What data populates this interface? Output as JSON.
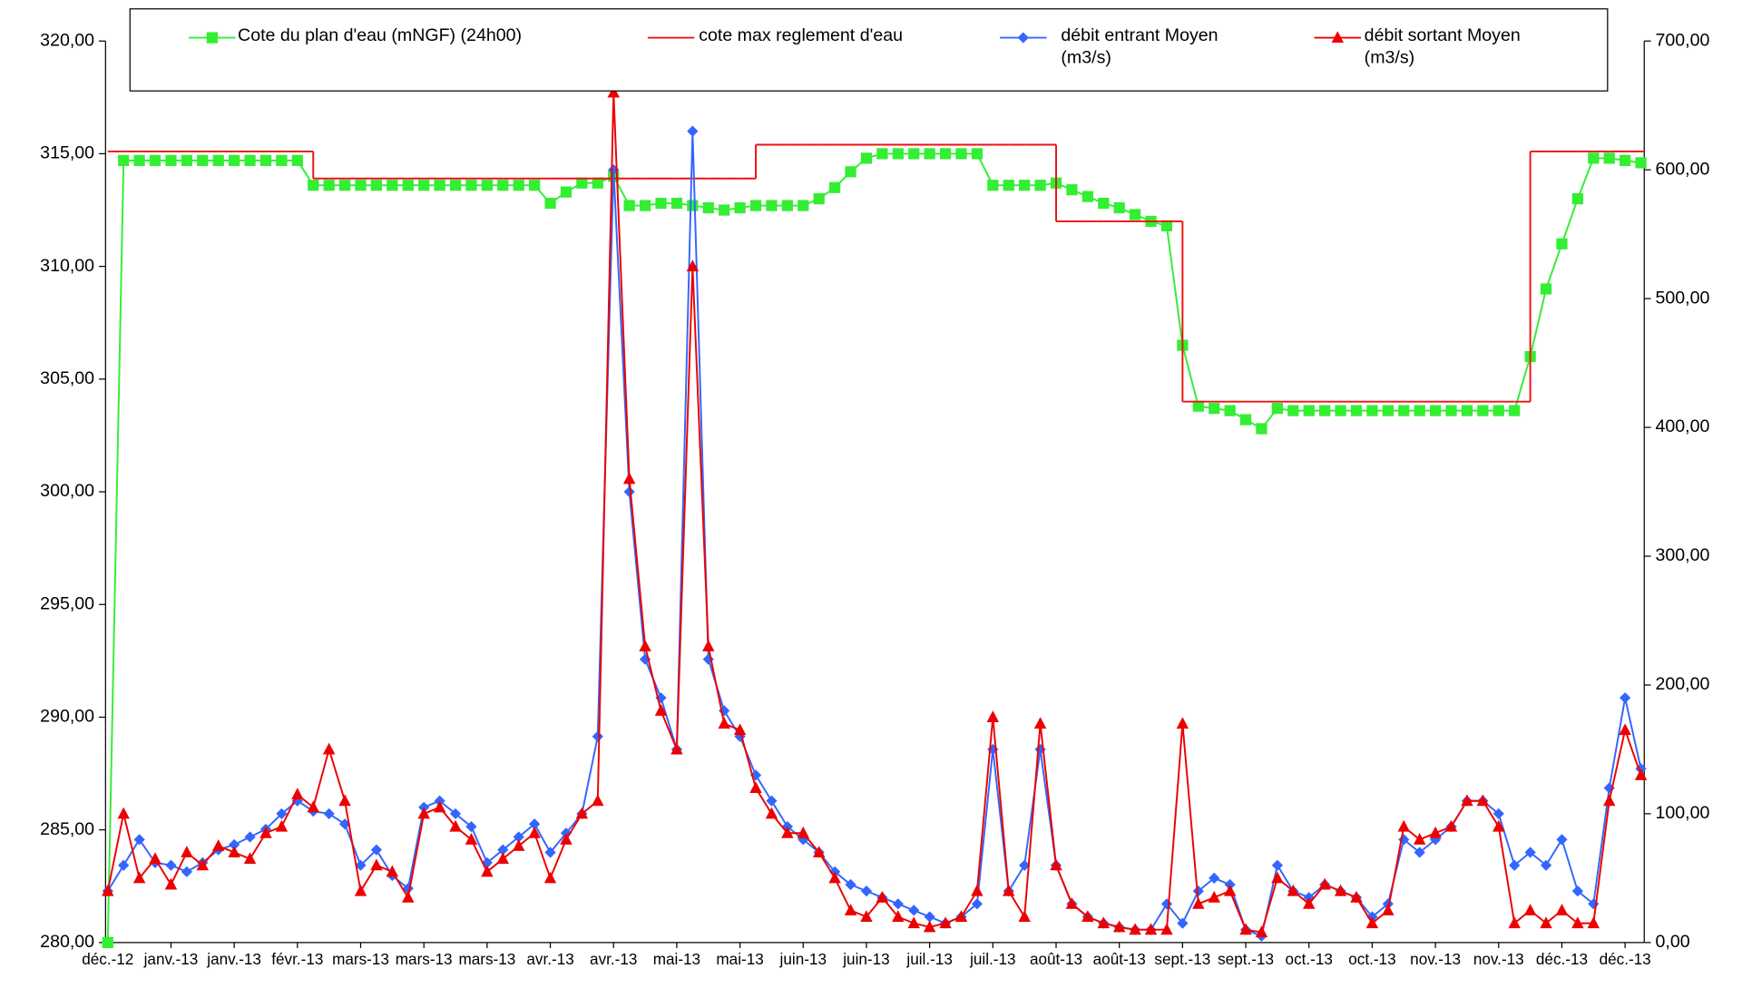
{
  "chart_data": {
    "type": "line",
    "categories": [
      "déc.-12",
      null,
      null,
      null,
      "janv.-13",
      null,
      null,
      null,
      "janv.-13",
      null,
      null,
      null,
      "févr.-13",
      null,
      null,
      null,
      "mars-13",
      null,
      null,
      null,
      "mars-13",
      null,
      null,
      null,
      "mars-13",
      null,
      null,
      null,
      "avr.-13",
      null,
      null,
      null,
      "avr.-13",
      null,
      null,
      null,
      "mai-13",
      null,
      null,
      null,
      "mai-13",
      null,
      null,
      null,
      "juin-13",
      null,
      null,
      null,
      "juin-13",
      null,
      null,
      null,
      "juil.-13",
      null,
      null,
      null,
      "juil.-13",
      null,
      null,
      null,
      "août-13",
      null,
      null,
      null,
      "août-13",
      null,
      null,
      null,
      "sept.-13",
      null,
      null,
      null,
      "sept.-13",
      null,
      null,
      null,
      "oct.-13",
      null,
      null,
      null,
      "oct.-13",
      null,
      null,
      null,
      "nov.-13",
      null,
      null,
      null,
      "nov.-13",
      null,
      null,
      null,
      "déc.-13",
      null,
      null,
      null,
      "déc.-13",
      null
    ],
    "series": [
      {
        "name": "Cote du plan d'eau (mNGF) (24h00)",
        "color": "#33ee33",
        "marker": "square",
        "values": [
          280,
          314.7,
          314.7,
          314.7,
          314.7,
          314.7,
          314.7,
          314.7,
          314.7,
          314.7,
          314.7,
          314.7,
          314.7,
          313.6,
          313.6,
          313.6,
          313.6,
          313.6,
          313.6,
          313.6,
          313.6,
          313.6,
          313.6,
          313.6,
          313.6,
          313.6,
          313.6,
          313.6,
          312.8,
          313.3,
          313.7,
          313.7,
          314.0,
          312.7,
          312.7,
          312.8,
          312.8,
          312.7,
          312.6,
          312.5,
          312.6,
          312.7,
          312.7,
          312.7,
          312.7,
          313.0,
          313.5,
          314.2,
          314.8,
          315.0,
          315.0,
          315.0,
          315.0,
          315.0,
          315.0,
          315.0,
          313.6,
          313.6,
          313.6,
          313.6,
          313.7,
          313.4,
          313.1,
          312.8,
          312.6,
          312.3,
          312.0,
          311.8,
          306.5,
          303.8,
          303.7,
          303.6,
          303.2,
          302.8,
          303.7,
          303.6,
          303.6,
          303.6,
          303.6,
          303.6,
          303.6,
          303.6,
          303.6,
          303.6,
          303.6,
          303.6,
          303.6,
          303.6,
          303.6,
          303.6,
          306,
          309,
          311,
          313,
          314.8,
          314.8,
          314.7,
          314.6
        ]
      },
      {
        "name": "cote max reglement d'eau",
        "color": "#ee1111",
        "marker": "none",
        "step": true,
        "values": [
          315.1,
          315.1,
          315.1,
          315.1,
          315.1,
          315.1,
          315.1,
          315.1,
          315.1,
          315.1,
          315.1,
          315.1,
          315.1,
          313.9,
          313.9,
          313.9,
          313.9,
          313.9,
          313.9,
          313.9,
          313.9,
          313.9,
          313.9,
          313.9,
          313.9,
          313.9,
          313.9,
          313.9,
          313.9,
          313.9,
          313.9,
          313.9,
          313.9,
          313.9,
          313.9,
          313.9,
          313.9,
          313.9,
          313.9,
          313.9,
          313.9,
          315.4,
          315.4,
          315.4,
          315.4,
          315.4,
          315.4,
          315.4,
          315.4,
          315.4,
          315.4,
          315.4,
          315.4,
          315.4,
          315.4,
          315.4,
          315.4,
          315.4,
          315.4,
          315.4,
          312.0,
          312.0,
          312.0,
          312.0,
          312.0,
          312.0,
          312.0,
          312.0,
          304.0,
          304.0,
          304.0,
          304.0,
          304.0,
          304.0,
          304.0,
          304.0,
          304.0,
          304.0,
          304.0,
          304.0,
          304.0,
          304.0,
          304.0,
          304.0,
          304.0,
          304.0,
          304.0,
          304.0,
          304.0,
          304.0,
          315.1,
          315.1,
          315.1,
          315.1,
          315.1,
          315.1,
          315.1,
          315.1
        ]
      },
      {
        "name": "débit entrant Moyen (m3/s)",
        "color": "#3366ff",
        "marker": "diamond",
        "axis": "y2",
        "values": [
          40,
          60,
          80,
          62,
          60,
          55,
          62,
          72,
          76,
          82,
          88,
          100,
          110,
          102,
          100,
          92,
          60,
          72,
          52,
          42,
          105,
          110,
          100,
          90,
          62,
          72,
          82,
          92,
          70,
          85,
          100,
          160,
          600,
          350,
          220,
          190,
          150,
          630,
          220,
          180,
          160,
          130,
          110,
          90,
          80,
          70,
          55,
          45,
          40,
          35,
          30,
          25,
          20,
          15,
          20,
          30,
          150,
          40,
          60,
          150,
          60,
          30,
          20,
          15,
          12,
          10,
          10,
          30,
          15,
          40,
          50,
          45,
          10,
          5,
          60,
          40,
          35,
          45,
          40,
          35,
          20,
          30,
          80,
          70,
          80,
          90,
          110,
          110,
          100,
          60,
          70,
          60,
          80,
          40,
          30,
          120,
          190,
          135
        ]
      },
      {
        "name": "débit sortant Moyen (m3/s)",
        "color": "#ee0000",
        "marker": "triangle",
        "axis": "y2",
        "values": [
          40,
          100,
          50,
          65,
          45,
          70,
          60,
          75,
          70,
          65,
          85,
          90,
          115,
          105,
          150,
          110,
          40,
          60,
          55,
          35,
          100,
          105,
          90,
          80,
          55,
          65,
          75,
          85,
          50,
          80,
          100,
          110,
          660,
          360,
          230,
          180,
          150,
          525,
          230,
          170,
          165,
          120,
          100,
          85,
          85,
          70,
          50,
          25,
          20,
          35,
          20,
          15,
          12,
          15,
          20,
          40,
          175,
          40,
          20,
          170,
          60,
          30,
          20,
          15,
          12,
          10,
          10,
          10,
          170,
          30,
          35,
          40,
          10,
          8,
          50,
          40,
          30,
          45,
          40,
          35,
          15,
          25,
          90,
          80,
          85,
          90,
          110,
          110,
          90,
          15,
          25,
          15,
          25,
          15,
          15,
          110,
          165,
          130
        ]
      }
    ],
    "ylim": [
      280,
      320
    ],
    "yticks": [
      {
        "value": 280,
        "label": "280,00"
      },
      {
        "value": 285,
        "label": "285,00"
      },
      {
        "value": 290,
        "label": "290,00"
      },
      {
        "value": 295,
        "label": "295,00"
      },
      {
        "value": 300,
        "label": "300,00"
      },
      {
        "value": 305,
        "label": "305,00"
      },
      {
        "value": 310,
        "label": "310,00"
      },
      {
        "value": 315,
        "label": "315,00"
      },
      {
        "value": 320,
        "label": "320,00"
      }
    ],
    "y2lim": [
      0,
      700
    ],
    "y2ticks": [
      {
        "value": 0,
        "label": "0,00"
      },
      {
        "value": 100,
        "label": "100,00"
      },
      {
        "value": 200,
        "label": "200,00"
      },
      {
        "value": 300,
        "label": "300,00"
      },
      {
        "value": 400,
        "label": "400,00"
      },
      {
        "value": 500,
        "label": "500,00"
      },
      {
        "value": 600,
        "label": "600,00"
      },
      {
        "value": 700,
        "label": "700,00"
      }
    ],
    "grid": false,
    "legend": "top"
  }
}
